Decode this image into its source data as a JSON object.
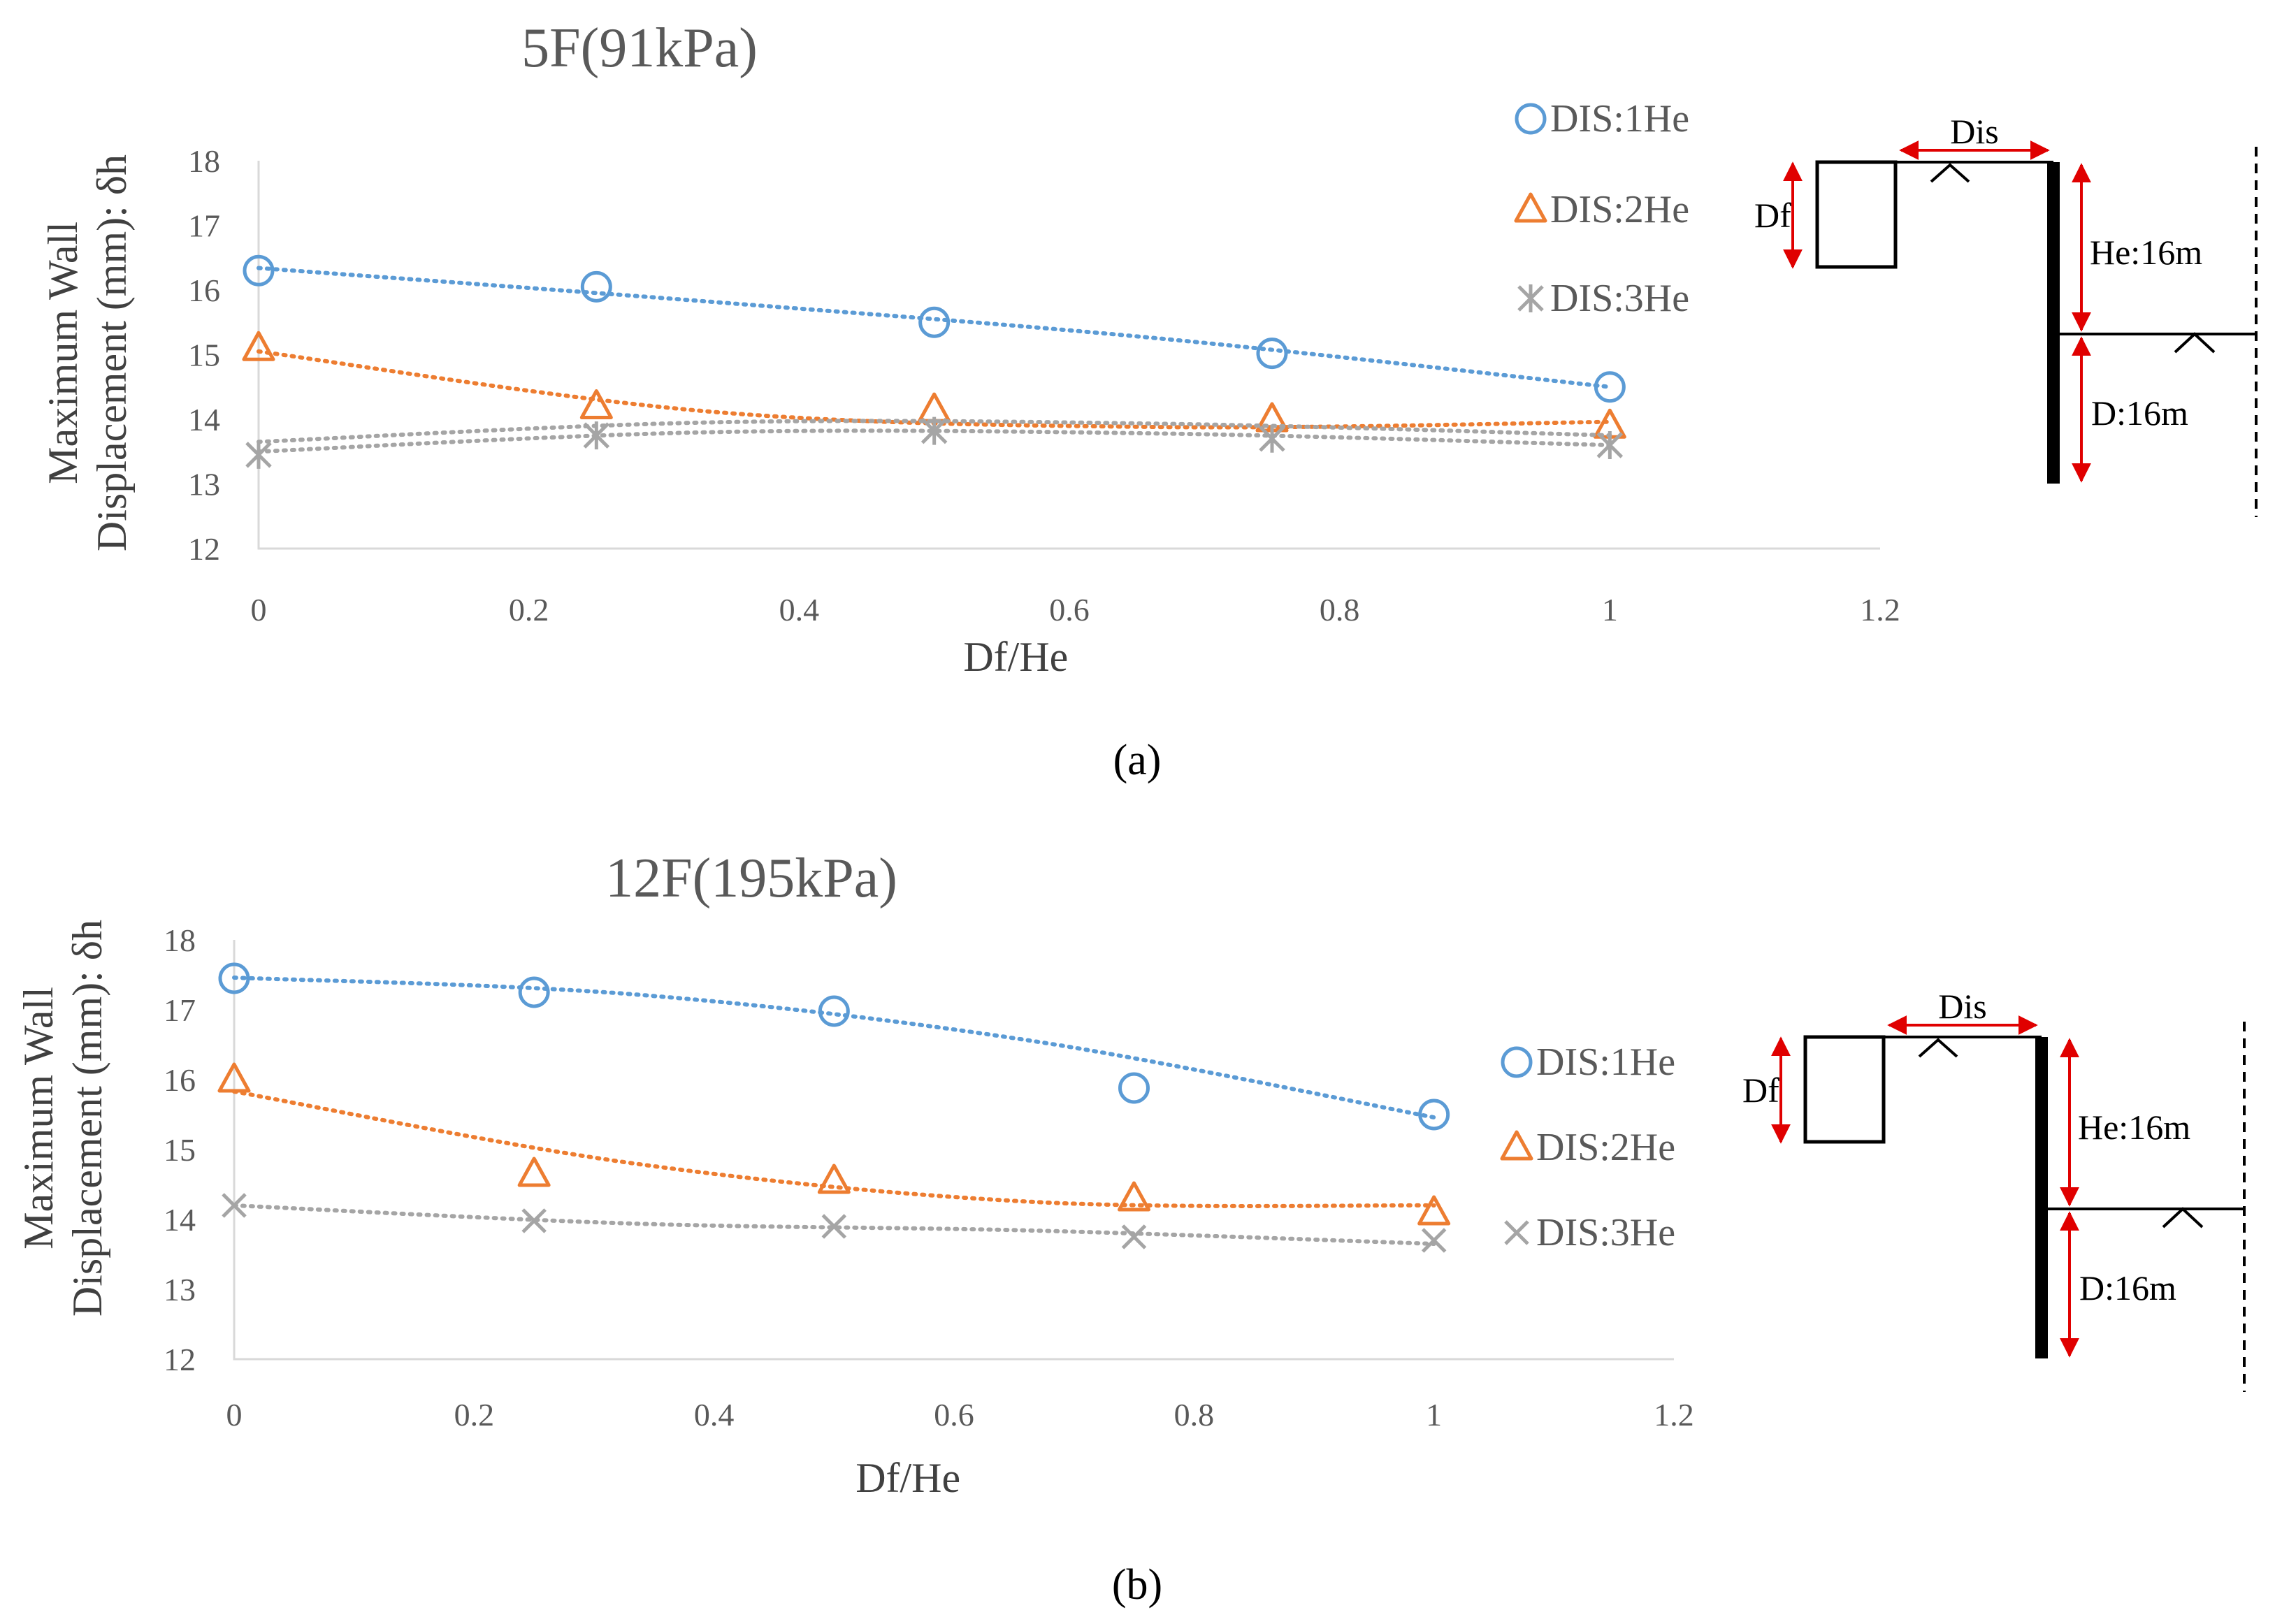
{
  "figure": {
    "subfigure_labels": [
      "(a)",
      "(b)"
    ]
  },
  "chart_data": [
    {
      "type": "scatter",
      "title": "5F(91kPa)",
      "xlabel": "Df/He",
      "ylabel_line1": "Maximum Wall",
      "ylabel_line2": "Displacement (mm): δh",
      "xlim": [
        0,
        1.2
      ],
      "ylim": [
        12,
        18
      ],
      "xticks": [
        "0",
        "0.2",
        "0.4",
        "0.6",
        "0.8",
        "1",
        "1.2"
      ],
      "yticks": [
        "12",
        "13",
        "14",
        "15",
        "16",
        "17",
        "18"
      ],
      "legend_position": "right",
      "series": [
        {
          "name": "DIS:1He",
          "marker": "circle",
          "color": "#5b9bd5",
          "x": [
            0,
            0.25,
            0.5,
            0.75,
            1
          ],
          "y": [
            16.3,
            16.05,
            15.5,
            15.02,
            14.5
          ],
          "trend": [
            16.34,
            15.82,
            15.25,
            14.5
          ]
        },
        {
          "name": "DIS:2He",
          "marker": "triangle",
          "color": "#ed7d31",
          "x": [
            0,
            0.25,
            0.5,
            0.75,
            1
          ],
          "y": [
            15.1,
            14.2,
            14.15,
            14.0,
            13.9
          ],
          "trend": [
            15.05,
            14.12,
            13.88,
            13.96
          ]
        },
        {
          "name": "DIS:3He",
          "marker": "star",
          "color": "#a5a5a5",
          "x": [
            0,
            0.25,
            0.5,
            0.75,
            1
          ],
          "y": [
            13.45,
            13.75,
            13.82,
            13.7,
            13.6
          ],
          "trend": [
            13.5,
            13.8,
            13.78,
            13.6
          ]
        }
      ],
      "diagram": {
        "dis": "Dis",
        "df": "Df",
        "he": "He:16m",
        "d": "D:16m"
      }
    },
    {
      "type": "scatter",
      "title": "12F(195kPa)",
      "xlabel": "Df/He",
      "ylabel_line1": "Maximum Wall",
      "ylabel_line2": "Displacement (mm): δh",
      "xlim": [
        0,
        1.2
      ],
      "ylim": [
        12,
        18
      ],
      "xticks": [
        "0",
        "0.2",
        "0.4",
        "0.6",
        "0.8",
        "1",
        "1.2"
      ],
      "yticks": [
        "12",
        "13",
        "14",
        "15",
        "16",
        "17",
        "18"
      ],
      "legend_position": "right",
      "series": [
        {
          "name": "DIS:1He",
          "marker": "circle",
          "color": "#5b9bd5",
          "x": [
            0,
            0.25,
            0.5,
            0.75,
            1
          ],
          "y": [
            17.45,
            17.25,
            16.98,
            15.88,
            15.5
          ],
          "trend": [
            17.46,
            17.22,
            16.55,
            15.46
          ]
        },
        {
          "name": "DIS:2He",
          "marker": "triangle",
          "color": "#ed7d31",
          "x": [
            0,
            0.25,
            0.5,
            0.75,
            1
          ],
          "y": [
            16.0,
            14.65,
            14.55,
            14.3,
            14.1
          ],
          "trend": [
            15.83,
            14.8,
            14.25,
            14.2
          ]
        },
        {
          "name": "DIS:3He",
          "marker": "cross",
          "color": "#a5a5a5",
          "x": [
            0,
            0.25,
            0.5,
            0.75,
            1
          ],
          "y": [
            14.2,
            13.98,
            13.9,
            13.75,
            13.7
          ],
          "trend": [
            14.2,
            13.94,
            13.84,
            13.65
          ]
        }
      ],
      "diagram": {
        "dis": "Dis",
        "df": "Df",
        "he": "He:16m",
        "d": "D:16m"
      }
    }
  ]
}
